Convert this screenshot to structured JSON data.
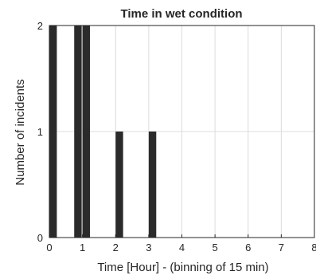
{
  "chart_data": {
    "type": "bar",
    "title": "Time in wet condition",
    "xlabel": "Time [Hour] - (binning of 15 min)",
    "ylabel": "Number of incidents",
    "xlim": [
      0,
      8
    ],
    "ylim": [
      0,
      2
    ],
    "xticks": [
      0,
      1,
      2,
      3,
      4,
      5,
      6,
      7,
      8
    ],
    "yticks": [
      0,
      1,
      2
    ],
    "grid": true,
    "bin_width_hours": 0.25,
    "bins": [
      {
        "x_start": 0.0,
        "value": 2
      },
      {
        "x_start": 0.75,
        "value": 2
      },
      {
        "x_start": 1.0,
        "value": 2
      },
      {
        "x_start": 2.0,
        "value": 1
      },
      {
        "x_start": 3.0,
        "value": 1
      }
    ],
    "colors": {
      "bar": "#2b2b2b",
      "grid": "#dcdcdc",
      "axis": "#262626"
    }
  }
}
